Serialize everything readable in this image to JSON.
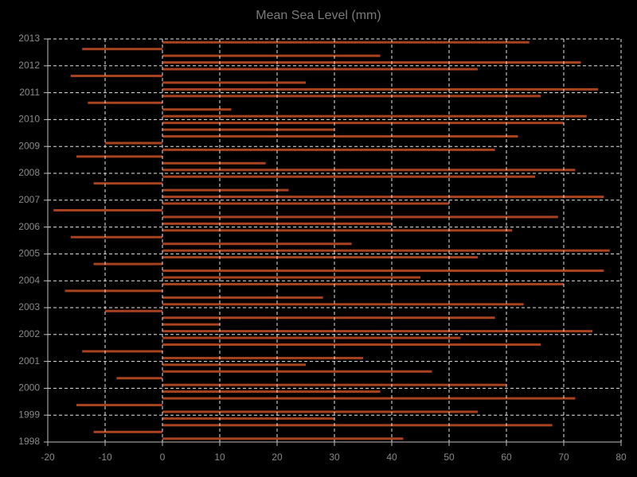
{
  "chart_data": {
    "type": "barh",
    "title": "Mean Sea Level (mm)",
    "y": [
      1998.125,
      1998.375,
      1998.625,
      1998.875,
      1999.125,
      1999.375,
      1999.625,
      1999.875,
      2000.125,
      2000.375,
      2000.625,
      2000.875,
      2001.125,
      2001.375,
      2001.625,
      2001.875,
      2002.125,
      2002.375,
      2002.625,
      2002.875,
      2003.125,
      2003.375,
      2003.625,
      2003.875,
      2004.125,
      2004.375,
      2004.625,
      2004.875,
      2005.125,
      2005.375,
      2005.625,
      2005.875,
      2006.125,
      2006.375,
      2006.625,
      2006.875,
      2007.125,
      2007.375,
      2007.625,
      2007.875,
      2008.125,
      2008.375,
      2008.625,
      2008.875,
      2009.125,
      2009.375,
      2009.625,
      2009.875,
      2010.125,
      2010.375,
      2010.625,
      2010.875,
      2011.125,
      2011.375,
      2011.625,
      2011.875,
      2012.125,
      2012.375,
      2012.625,
      2012.875
    ],
    "values": [
      42,
      -12,
      68,
      30,
      55,
      -15,
      72,
      38,
      60,
      -8,
      47,
      25,
      35,
      -14,
      66,
      52,
      75,
      10,
      58,
      -10,
      63,
      28,
      -17,
      70,
      45,
      77,
      -12,
      55,
      78,
      33,
      -16,
      61,
      40,
      69,
      -19,
      50,
      77,
      22,
      -12,
      65,
      72,
      18,
      -15,
      58,
      -10,
      62,
      30,
      70,
      74,
      12,
      -13,
      66,
      76,
      25,
      -16,
      55,
      73,
      38,
      -14,
      64
    ],
    "color": "#a8421f",
    "xlim": [
      -20,
      80
    ],
    "xticks": [
      -20,
      -10,
      0,
      10,
      20,
      30,
      40,
      50,
      60,
      70,
      80
    ],
    "ylim": [
      1998,
      2013
    ],
    "yticks": [
      1998,
      1999,
      2000,
      2001,
      2002,
      2003,
      2004,
      2005,
      2006,
      2007,
      2008,
      2009,
      2010,
      2011,
      2012,
      2013
    ],
    "grid": true
  }
}
